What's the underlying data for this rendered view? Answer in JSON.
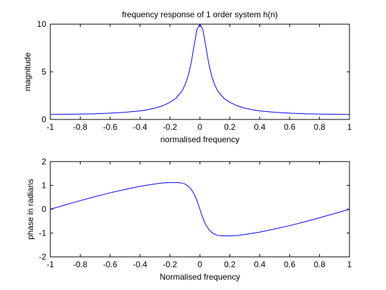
{
  "chart_data": [
    {
      "type": "line",
      "title": "frequency response of 1 order system h(n)",
      "xlabel": "normalised frequency",
      "ylabel": "magnitude",
      "xlim": [
        -1,
        1
      ],
      "ylim": [
        0,
        10
      ],
      "xticks": [
        "-1",
        "-0.8",
        "-0.6",
        "-0.4",
        "-0.2",
        "0",
        "0.2",
        "0.4",
        "0.6",
        "0.8",
        "1"
      ],
      "yticks": [
        "0",
        "5",
        "10"
      ],
      "grid": false,
      "series": [
        {
          "color": "#0000ff",
          "x": [
            -1,
            -0.9,
            -0.8,
            -0.7,
            -0.6,
            -0.5,
            -0.4,
            -0.35,
            -0.3,
            -0.25,
            -0.2,
            -0.16,
            -0.12,
            -0.1,
            -0.08,
            -0.06,
            -0.04,
            -0.02,
            0,
            0.02,
            0.04,
            0.06,
            0.08,
            0.1,
            0.12,
            0.16,
            0.2,
            0.25,
            0.3,
            0.35,
            0.4,
            0.5,
            0.6,
            0.7,
            0.8,
            0.9,
            1
          ],
          "y": [
            0.53,
            0.54,
            0.56,
            0.6,
            0.66,
            0.75,
            0.9,
            1.02,
            1.19,
            1.43,
            1.8,
            2.23,
            2.97,
            3.6,
            4.49,
            5.8,
            7.63,
            9.43,
            10,
            9.43,
            7.63,
            5.8,
            4.49,
            3.6,
            2.97,
            2.23,
            1.8,
            1.43,
            1.19,
            1.02,
            0.9,
            0.75,
            0.66,
            0.6,
            0.56,
            0.54,
            0.53
          ]
        }
      ]
    },
    {
      "type": "line",
      "title": "",
      "xlabel": "Normalised frequency",
      "ylabel": "phase in radians",
      "xlim": [
        -1,
        1
      ],
      "ylim": [
        -2,
        2
      ],
      "xticks": [
        "-1",
        "-0.8",
        "-0.6",
        "-0.4",
        "-0.2",
        "0",
        "0.2",
        "0.4",
        "0.6",
        "0.8",
        "1"
      ],
      "yticks": [
        "-2",
        "-1",
        "0",
        "1",
        "2"
      ],
      "grid": false,
      "series": [
        {
          "color": "#0000ff",
          "x": [
            -1,
            -0.9,
            -0.8,
            -0.7,
            -0.6,
            -0.5,
            -0.4,
            -0.3,
            -0.25,
            -0.2,
            -0.16,
            -0.13,
            -0.1,
            -0.08,
            -0.06,
            -0.04,
            -0.02,
            0,
            0.02,
            0.04,
            0.06,
            0.08,
            0.1,
            0.13,
            0.16,
            0.2,
            0.25,
            0.3,
            0.4,
            0.5,
            0.6,
            0.7,
            0.8,
            0.9,
            1
          ],
          "y": [
            0,
            0.18,
            0.36,
            0.53,
            0.69,
            0.83,
            0.96,
            1.06,
            1.1,
            1.12,
            1.12,
            1.11,
            1.06,
            0.98,
            0.85,
            0.66,
            0.37,
            0,
            -0.37,
            -0.66,
            -0.85,
            -0.98,
            -1.06,
            -1.11,
            -1.12,
            -1.12,
            -1.1,
            -1.06,
            -0.96,
            -0.83,
            -0.69,
            -0.53,
            -0.36,
            -0.18,
            0
          ]
        }
      ]
    }
  ]
}
